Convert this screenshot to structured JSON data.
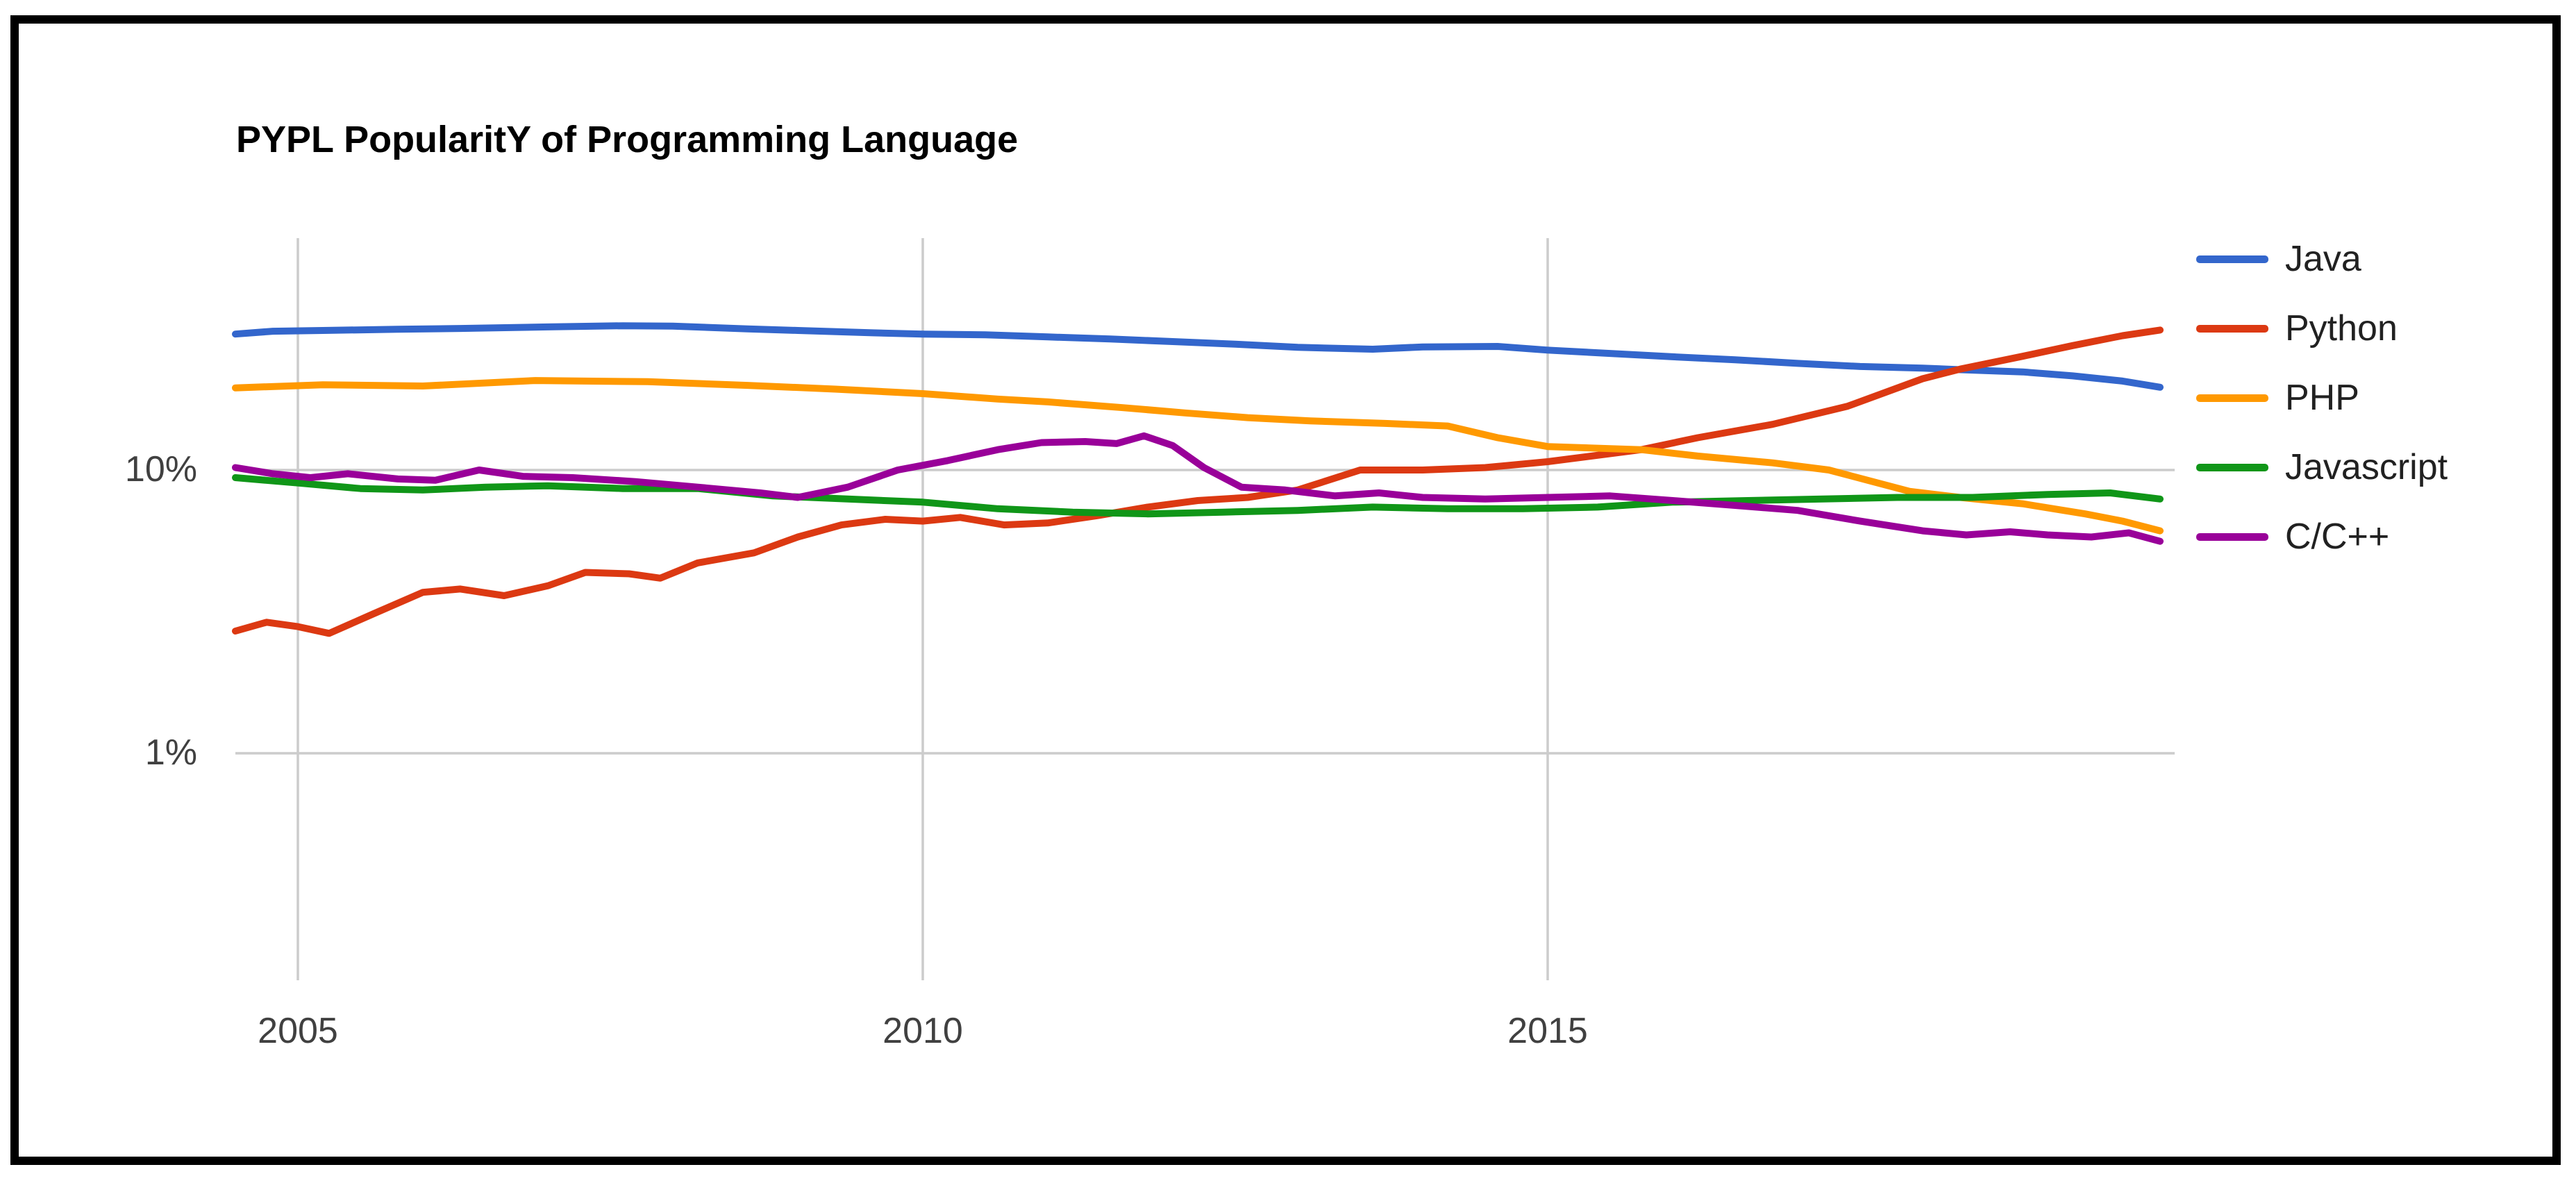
{
  "page": {
    "background": "#ffffff",
    "frame_color": "#000000"
  },
  "chart_data": {
    "type": "line",
    "title": "PYPL PopularitY of Programming Language",
    "xlabel": "",
    "ylabel": "",
    "x_axis": {
      "range": [
        2004.5,
        2019.9
      ],
      "ticks": [
        {
          "label": "2005",
          "year": 2005
        },
        {
          "label": "2010",
          "year": 2010
        },
        {
          "label": "2015",
          "year": 2015
        }
      ]
    },
    "y_axis": {
      "scale": "log",
      "unit": "%",
      "range": [
        0.16,
        66
      ],
      "ticks": [
        {
          "label": "10%",
          "value": 10
        },
        {
          "label": "1%",
          "value": 1
        }
      ]
    },
    "grid": {
      "color": "#cccccc",
      "on": true
    },
    "legend": {
      "position": "right",
      "entries": [
        "Java",
        "Python",
        "PHP",
        "Javascript",
        "C/C++"
      ]
    },
    "series": [
      {
        "name": "Java",
        "color": "#3366CC",
        "points": [
          [
            2004.5,
            30.2
          ],
          [
            2004.8,
            30.9
          ],
          [
            2005.2,
            31.1
          ],
          [
            2005.8,
            31.4
          ],
          [
            2006.3,
            31.6
          ],
          [
            2007.0,
            32.0
          ],
          [
            2007.6,
            32.3
          ],
          [
            2008.0,
            32.2
          ],
          [
            2008.6,
            31.5
          ],
          [
            2009.0,
            31.1
          ],
          [
            2009.6,
            30.5
          ],
          [
            2010.0,
            30.2
          ],
          [
            2010.5,
            30.0
          ],
          [
            2011.0,
            29.5
          ],
          [
            2011.5,
            29.0
          ],
          [
            2012.0,
            28.4
          ],
          [
            2012.5,
            27.8
          ],
          [
            2013.0,
            27.1
          ],
          [
            2013.6,
            26.7
          ],
          [
            2014.0,
            27.2
          ],
          [
            2014.6,
            27.3
          ],
          [
            2015.0,
            26.5
          ],
          [
            2015.5,
            25.8
          ],
          [
            2016.0,
            25.1
          ],
          [
            2016.5,
            24.5
          ],
          [
            2017.0,
            23.8
          ],
          [
            2017.5,
            23.2
          ],
          [
            2018.0,
            22.9
          ],
          [
            2018.3,
            22.6
          ],
          [
            2018.8,
            22.2
          ],
          [
            2019.2,
            21.5
          ],
          [
            2019.6,
            20.6
          ],
          [
            2019.9,
            19.6
          ]
        ]
      },
      {
        "name": "Python",
        "color": "#DC3912",
        "points": [
          [
            2004.5,
            2.7
          ],
          [
            2004.75,
            2.9
          ],
          [
            2005.0,
            2.8
          ],
          [
            2005.25,
            2.65
          ],
          [
            2005.6,
            3.1
          ],
          [
            2006.0,
            3.7
          ],
          [
            2006.3,
            3.8
          ],
          [
            2006.65,
            3.6
          ],
          [
            2007.0,
            3.9
          ],
          [
            2007.3,
            4.35
          ],
          [
            2007.65,
            4.3
          ],
          [
            2007.9,
            4.15
          ],
          [
            2008.2,
            4.7
          ],
          [
            2008.65,
            5.1
          ],
          [
            2009.0,
            5.8
          ],
          [
            2009.35,
            6.4
          ],
          [
            2009.7,
            6.7
          ],
          [
            2010.0,
            6.6
          ],
          [
            2010.3,
            6.8
          ],
          [
            2010.65,
            6.4
          ],
          [
            2011.0,
            6.5
          ],
          [
            2011.4,
            6.9
          ],
          [
            2011.8,
            7.4
          ],
          [
            2012.2,
            7.8
          ],
          [
            2012.6,
            8.0
          ],
          [
            2013.0,
            8.5
          ],
          [
            2013.5,
            10.0
          ],
          [
            2014.0,
            10.0
          ],
          [
            2014.5,
            10.2
          ],
          [
            2015.0,
            10.7
          ],
          [
            2015.75,
            11.8
          ],
          [
            2016.2,
            13.0
          ],
          [
            2016.8,
            14.5
          ],
          [
            2017.4,
            16.8
          ],
          [
            2018.0,
            21.0
          ],
          [
            2018.3,
            22.7
          ],
          [
            2018.8,
            25.2
          ],
          [
            2019.2,
            27.5
          ],
          [
            2019.6,
            29.8
          ],
          [
            2019.9,
            31.2
          ]
        ]
      },
      {
        "name": "PHP",
        "color": "#FF9900",
        "points": [
          [
            2004.5,
            19.5
          ],
          [
            2005.2,
            20.0
          ],
          [
            2006.0,
            19.8
          ],
          [
            2006.9,
            20.7
          ],
          [
            2007.8,
            20.5
          ],
          [
            2008.6,
            19.9
          ],
          [
            2009.3,
            19.3
          ],
          [
            2010.0,
            18.6
          ],
          [
            2010.6,
            17.8
          ],
          [
            2011.0,
            17.4
          ],
          [
            2011.6,
            16.6
          ],
          [
            2012.1,
            15.9
          ],
          [
            2012.6,
            15.3
          ],
          [
            2013.1,
            14.9
          ],
          [
            2013.7,
            14.6
          ],
          [
            2014.2,
            14.3
          ],
          [
            2014.6,
            13.0
          ],
          [
            2015.0,
            12.1
          ],
          [
            2015.5,
            11.9
          ],
          [
            2015.75,
            11.8
          ],
          [
            2016.2,
            11.2
          ],
          [
            2016.8,
            10.6
          ],
          [
            2017.25,
            10.0
          ],
          [
            2017.6,
            9.1
          ],
          [
            2017.9,
            8.4
          ],
          [
            2018.3,
            8.0
          ],
          [
            2018.8,
            7.6
          ],
          [
            2019.3,
            7.0
          ],
          [
            2019.6,
            6.6
          ],
          [
            2019.9,
            6.1
          ]
        ]
      },
      {
        "name": "Javascript",
        "color": "#109618",
        "points": [
          [
            2004.5,
            9.4
          ],
          [
            2005.0,
            9.0
          ],
          [
            2005.5,
            8.6
          ],
          [
            2006.0,
            8.5
          ],
          [
            2006.5,
            8.7
          ],
          [
            2007.0,
            8.8
          ],
          [
            2007.6,
            8.6
          ],
          [
            2008.2,
            8.6
          ],
          [
            2008.8,
            8.1
          ],
          [
            2009.4,
            7.9
          ],
          [
            2010.0,
            7.7
          ],
          [
            2010.6,
            7.3
          ],
          [
            2011.2,
            7.1
          ],
          [
            2011.8,
            7.0
          ],
          [
            2012.4,
            7.1
          ],
          [
            2013.0,
            7.2
          ],
          [
            2013.6,
            7.4
          ],
          [
            2014.2,
            7.3
          ],
          [
            2014.8,
            7.3
          ],
          [
            2015.4,
            7.4
          ],
          [
            2016.0,
            7.7
          ],
          [
            2016.6,
            7.8
          ],
          [
            2017.2,
            7.9
          ],
          [
            2017.8,
            8.0
          ],
          [
            2018.4,
            8.0
          ],
          [
            2019.0,
            8.2
          ],
          [
            2019.5,
            8.3
          ],
          [
            2019.9,
            7.9
          ]
        ]
      },
      {
        "name": "C/C++",
        "color": "#990099",
        "points": [
          [
            2004.5,
            10.2
          ],
          [
            2004.8,
            9.7
          ],
          [
            2005.1,
            9.4
          ],
          [
            2005.4,
            9.7
          ],
          [
            2005.8,
            9.3
          ],
          [
            2006.1,
            9.2
          ],
          [
            2006.45,
            10.0
          ],
          [
            2006.8,
            9.5
          ],
          [
            2007.2,
            9.4
          ],
          [
            2007.7,
            9.1
          ],
          [
            2008.2,
            8.7
          ],
          [
            2008.7,
            8.3
          ],
          [
            2009.0,
            8.0
          ],
          [
            2009.4,
            8.7
          ],
          [
            2009.8,
            10.0
          ],
          [
            2010.2,
            10.8
          ],
          [
            2010.6,
            11.8
          ],
          [
            2010.95,
            12.5
          ],
          [
            2011.3,
            12.6
          ],
          [
            2011.55,
            12.4
          ],
          [
            2011.77,
            13.2
          ],
          [
            2012.0,
            12.2
          ],
          [
            2012.25,
            10.2
          ],
          [
            2012.55,
            8.7
          ],
          [
            2012.9,
            8.5
          ],
          [
            2013.3,
            8.1
          ],
          [
            2013.65,
            8.3
          ],
          [
            2014.0,
            8.0
          ],
          [
            2014.5,
            7.9
          ],
          [
            2015.0,
            8.0
          ],
          [
            2015.5,
            8.1
          ],
          [
            2016.0,
            7.8
          ],
          [
            2016.5,
            7.5
          ],
          [
            2017.0,
            7.2
          ],
          [
            2017.5,
            6.6
          ],
          [
            2018.0,
            6.1
          ],
          [
            2018.35,
            5.9
          ],
          [
            2018.7,
            6.05
          ],
          [
            2019.0,
            5.9
          ],
          [
            2019.35,
            5.8
          ],
          [
            2019.65,
            6.0
          ],
          [
            2019.9,
            5.6
          ]
        ]
      }
    ]
  }
}
